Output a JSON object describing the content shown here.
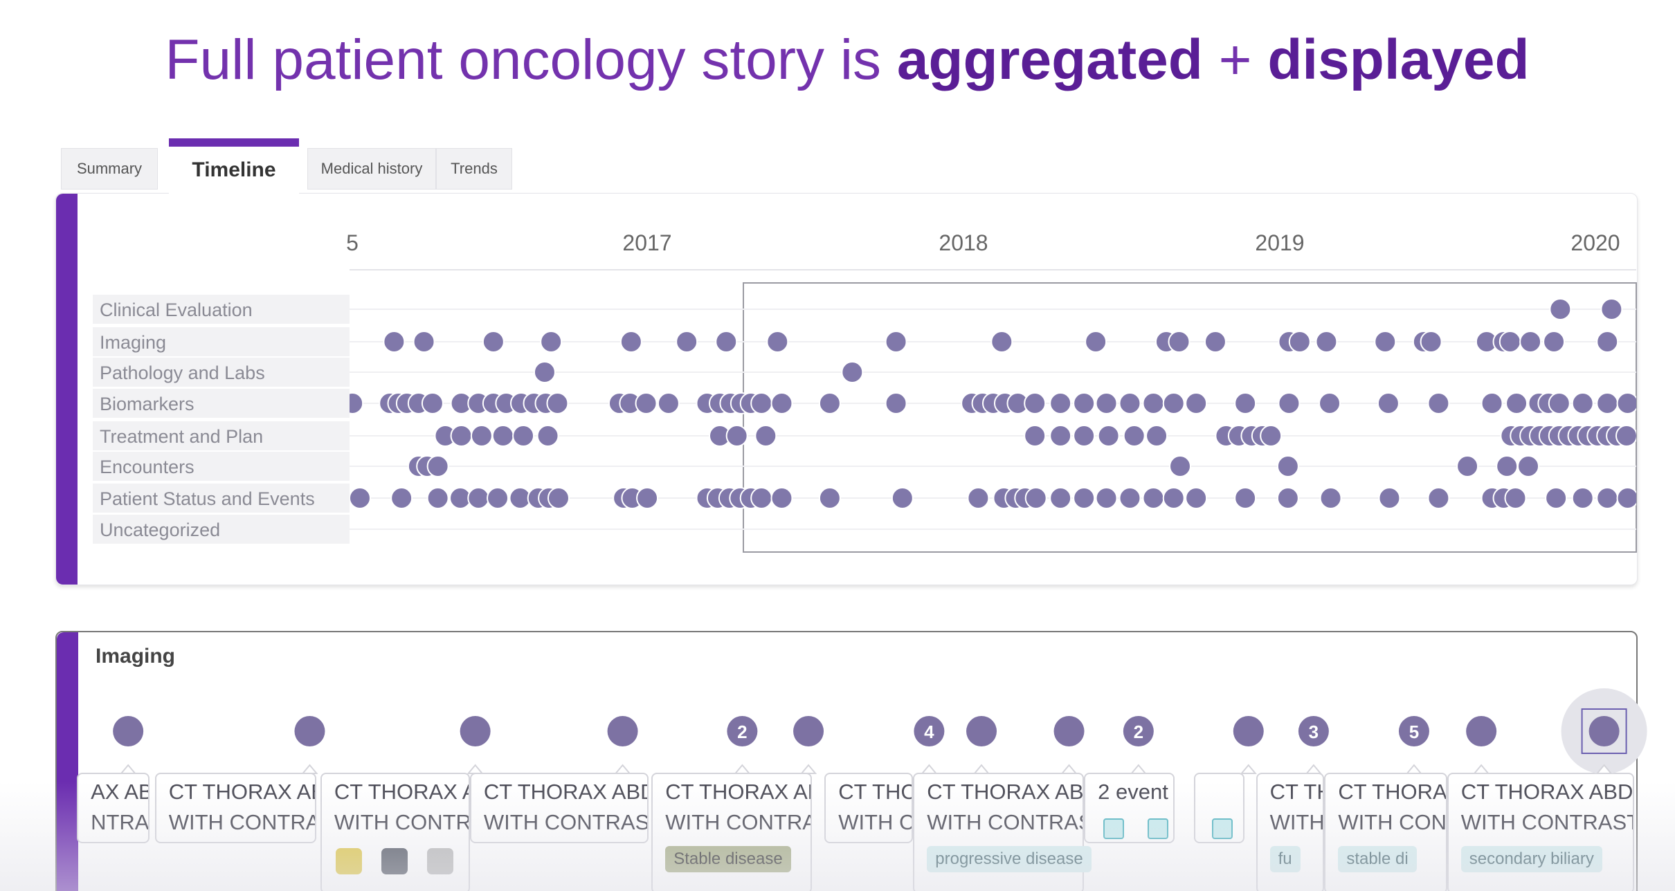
{
  "header": {
    "title_lead": "Full patient oncology story is",
    "title_bold1": "aggregated",
    "title_plus": "+",
    "title_bold2": "displayed"
  },
  "tabs": [
    "Summary",
    "Timeline",
    "Medical history",
    "Trends"
  ],
  "timeline": {
    "years": [
      "5",
      "2017",
      "2018",
      "2019",
      "2020"
    ],
    "rows": [
      "Clinical Evaluation",
      "Imaging",
      "Pathology and Labs",
      "Biomarkers",
      "Treatment and Plan",
      "Encounters",
      "Patient Status and Events",
      "Uncategorized"
    ]
  },
  "imaging": {
    "title": "Imaging",
    "markers": [
      null,
      null,
      null,
      null,
      2,
      null,
      4,
      null,
      null,
      2,
      null,
      3,
      5,
      null,
      null
    ],
    "cards": [
      {
        "lines": [
          "AX ABD",
          "NTRAST"
        ]
      },
      {
        "lines": [
          "CT THORAX AB",
          "WITH CONTRAS"
        ]
      },
      {
        "lines": [
          "CT THORAX A",
          "WITH CONTR"
        ]
      },
      {
        "lines": [
          "CT THORAX ABD",
          "WITH CONTRAST"
        ]
      },
      {
        "lines": [
          "CT THORAX AE",
          "WITH CONTRA"
        ],
        "tag": "Stable disease"
      },
      {
        "lines": [
          "CT THC",
          "WITH C"
        ]
      },
      {
        "lines": [
          "CT THORAX ABD",
          "WITH CONTRAS"
        ],
        "tag": "progressive disease"
      },
      {
        "lines": [
          "2 event"
        ]
      },
      {
        "lines": []
      },
      {
        "lines": [
          "CT TH",
          "WITH"
        ],
        "tag": "fu"
      },
      {
        "lines": [
          "CT THORAX",
          "WITH CON"
        ],
        "tag": "stable di"
      },
      {
        "lines": [
          "CT THORAX ABDO",
          "WITH CONTRAST"
        ],
        "tag": "secondary biliary"
      }
    ]
  }
}
